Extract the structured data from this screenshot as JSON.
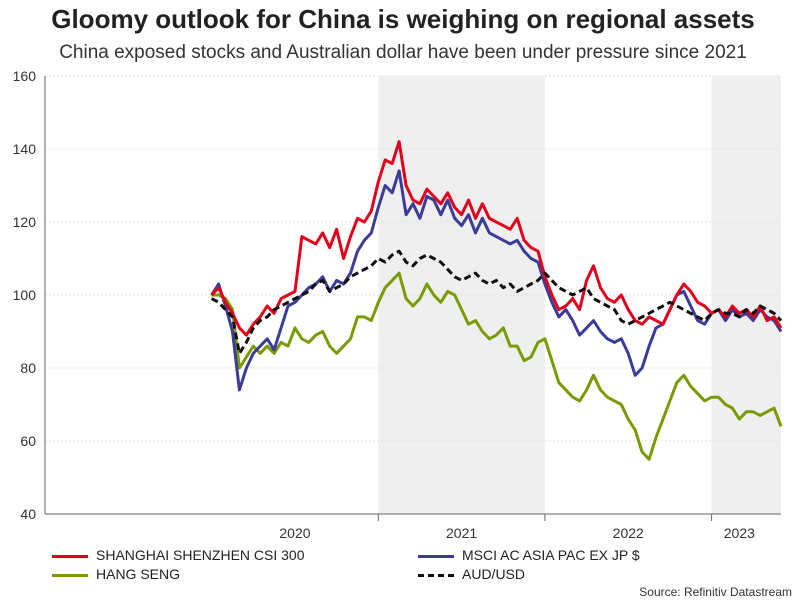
{
  "chart_data": {
    "type": "line",
    "title": "Gloomy outlook for China is weighing on regional assets",
    "subtitle": "China exposed stocks and Australian dollar have been under pressure since 2021",
    "source": "Source: Refinitiv Datastream",
    "ylim": [
      40,
      160
    ],
    "yticks": [
      "160",
      "140",
      "120",
      "100",
      "80",
      "60",
      "40"
    ],
    "ytick_values": [
      160,
      140,
      120,
      100,
      80,
      60,
      40
    ],
    "xlim": [
      0,
      53
    ],
    "x_unit": "months since Jan 2019 (start of chart ~ Jun 2019)",
    "x_labels": [
      {
        "label": "2020",
        "x": 18
      },
      {
        "label": "2021",
        "x": 30
      },
      {
        "label": "2022",
        "x": 42
      },
      {
        "label": "2023",
        "x": 50
      }
    ],
    "year_boundaries": [
      24,
      36,
      48
    ],
    "shaded_ranges": [
      [
        24,
        36
      ],
      [
        48,
        53
      ]
    ],
    "series": [
      {
        "name": "SHANGHAI SHENZHEN CSI 300",
        "color": "#e3001b",
        "dash": false,
        "x": [
          12,
          12.5,
          13,
          13.5,
          14,
          14.5,
          15,
          15.5,
          16,
          16.5,
          17,
          17.5,
          18,
          18.5,
          19,
          19.5,
          20,
          20.5,
          21,
          21.5,
          22,
          22.5,
          23,
          23.5,
          24,
          24.5,
          25,
          25.5,
          26,
          26.5,
          27,
          27.5,
          28,
          28.5,
          29,
          29.5,
          30,
          30.5,
          31,
          31.5,
          32,
          32.5,
          33,
          33.5,
          34,
          34.5,
          35,
          35.5,
          36,
          36.5,
          37,
          37.5,
          38,
          38.5,
          39,
          39.5,
          40,
          40.5,
          41,
          41.5,
          42,
          42.5,
          43,
          43.5,
          44,
          44.5,
          45,
          45.5,
          46,
          46.5,
          47,
          47.5,
          48,
          48.5,
          49,
          49.5,
          50,
          50.5,
          51,
          51.5,
          52,
          52.5,
          53
        ],
        "values": [
          100,
          102,
          98,
          95,
          91,
          89,
          92,
          94,
          97,
          95,
          99,
          100,
          101,
          116,
          115,
          114,
          117,
          113,
          118,
          110,
          116,
          121,
          120,
          123,
          131,
          137,
          136,
          142,
          130,
          126,
          125,
          129,
          127,
          125,
          128,
          124,
          122,
          126,
          121,
          125,
          121,
          120,
          119,
          118,
          121,
          115,
          113,
          112,
          105,
          100,
          96,
          97,
          99,
          96,
          104,
          108,
          102,
          99,
          98,
          100,
          96,
          93,
          92,
          94,
          93,
          92,
          96,
          100,
          103,
          101,
          98,
          97,
          95,
          96,
          94,
          97,
          95,
          96,
          94,
          97,
          93,
          94,
          91
        ]
      },
      {
        "name": "MSCI AC ASIA PAC EX JP $",
        "color": "#3b3b98",
        "dash": false,
        "x": [
          12,
          12.5,
          13,
          13.5,
          14,
          14.5,
          15,
          15.5,
          16,
          16.5,
          17,
          17.5,
          18,
          18.5,
          19,
          19.5,
          20,
          20.5,
          21,
          21.5,
          22,
          22.5,
          23,
          23.5,
          24,
          24.5,
          25,
          25.5,
          26,
          26.5,
          27,
          27.5,
          28,
          28.5,
          29,
          29.5,
          30,
          30.5,
          31,
          31.5,
          32,
          32.5,
          33,
          33.5,
          34,
          34.5,
          35,
          35.5,
          36,
          36.5,
          37,
          37.5,
          38,
          38.5,
          39,
          39.5,
          40,
          40.5,
          41,
          41.5,
          42,
          42.5,
          43,
          43.5,
          44,
          44.5,
          45,
          45.5,
          46,
          46.5,
          47,
          47.5,
          48,
          48.5,
          49,
          49.5,
          50,
          50.5,
          51,
          51.5,
          52,
          52.5,
          53
        ],
        "values": [
          100,
          103,
          97,
          90,
          74,
          80,
          84,
          86,
          88,
          85,
          91,
          97,
          98,
          100,
          102,
          103,
          105,
          101,
          104,
          103,
          106,
          112,
          115,
          117,
          124,
          130,
          128,
          134,
          122,
          125,
          121,
          127,
          126,
          122,
          126,
          121,
          119,
          122,
          117,
          121,
          117,
          116,
          115,
          114,
          115,
          112,
          110,
          109,
          103,
          98,
          94,
          96,
          93,
          89,
          91,
          93,
          90,
          88,
          87,
          88,
          84,
          78,
          80,
          86,
          91,
          92,
          96,
          100,
          101,
          97,
          93,
          92,
          95,
          96,
          93,
          96,
          94,
          95,
          93,
          96,
          94,
          93,
          90
        ]
      },
      {
        "name": "HANG SENG",
        "color": "#7a9a01",
        "dash": false,
        "x": [
          12,
          12.5,
          13,
          13.5,
          14,
          14.5,
          15,
          15.5,
          16,
          16.5,
          17,
          17.5,
          18,
          18.5,
          19,
          19.5,
          20,
          20.5,
          21,
          21.5,
          22,
          22.5,
          23,
          23.5,
          24,
          24.5,
          25,
          25.5,
          26,
          26.5,
          27,
          27.5,
          28,
          28.5,
          29,
          29.5,
          30,
          30.5,
          31,
          31.5,
          32,
          32.5,
          33,
          33.5,
          34,
          34.5,
          35,
          35.5,
          36,
          36.5,
          37,
          37.5,
          38,
          38.5,
          39,
          39.5,
          40,
          40.5,
          41,
          41.5,
          42,
          42.5,
          43,
          43.5,
          44,
          44.5,
          45,
          45.5,
          46,
          46.5,
          47,
          47.5,
          48,
          48.5,
          49,
          49.5,
          50,
          50.5,
          51,
          51.5,
          52,
          52.5,
          53
        ],
        "values": [
          100,
          100,
          99,
          96,
          80,
          83,
          86,
          84,
          86,
          84,
          87,
          86,
          91,
          88,
          87,
          89,
          90,
          86,
          84,
          86,
          88,
          94,
          94,
          93,
          98,
          102,
          104,
          106,
          99,
          97,
          99,
          103,
          100,
          98,
          101,
          100,
          96,
          92,
          93,
          90,
          88,
          89,
          91,
          86,
          86,
          82,
          83,
          87,
          88,
          82,
          76,
          74,
          72,
          71,
          74,
          78,
          74,
          72,
          71,
          70,
          66,
          63,
          57,
          55,
          61,
          66,
          71,
          76,
          78,
          75,
          73,
          71,
          72,
          72,
          70,
          69,
          66,
          68,
          68,
          67,
          68,
          69,
          64
        ]
      },
      {
        "name": "AUD/USD",
        "color": "#111111",
        "dash": true,
        "x": [
          12,
          12.5,
          13,
          13.5,
          14,
          14.5,
          15,
          15.5,
          16,
          16.5,
          17,
          17.5,
          18,
          18.5,
          19,
          19.5,
          20,
          20.5,
          21,
          21.5,
          22,
          22.5,
          23,
          23.5,
          24,
          24.5,
          25,
          25.5,
          26,
          26.5,
          27,
          27.5,
          28,
          28.5,
          29,
          29.5,
          30,
          30.5,
          31,
          31.5,
          32,
          32.5,
          33,
          33.5,
          34,
          34.5,
          35,
          35.5,
          36,
          36.5,
          37,
          37.5,
          38,
          38.5,
          39,
          39.5,
          40,
          40.5,
          41,
          41.5,
          42,
          42.5,
          43,
          43.5,
          44,
          44.5,
          45,
          45.5,
          46,
          46.5,
          47,
          47.5,
          48,
          48.5,
          49,
          49.5,
          50,
          50.5,
          51,
          51.5,
          52,
          52.5,
          53
        ],
        "values": [
          99,
          98,
          96,
          94,
          84,
          87,
          91,
          93,
          94,
          96,
          97,
          98,
          99,
          100,
          101,
          103,
          104,
          101,
          102,
          103,
          105,
          106,
          107,
          108,
          110,
          109,
          111,
          112,
          109,
          108,
          110,
          111,
          110,
          109,
          107,
          105,
          104,
          105,
          106,
          104,
          103,
          104,
          102,
          103,
          101,
          102,
          103,
          104,
          106,
          104,
          102,
          101,
          100,
          101,
          102,
          99,
          98,
          97,
          96,
          93,
          92,
          93,
          94,
          95,
          96,
          97,
          98,
          97,
          96,
          95,
          94,
          93,
          95,
          96,
          95,
          95,
          94,
          96,
          95,
          97,
          96,
          95,
          93
        ]
      }
    ],
    "legend": {
      "placement": "bottom",
      "entries": [
        "SHANGHAI SHENZHEN CSI 300",
        "MSCI AC ASIA PAC EX JP $",
        "HANG SENG",
        "AUD/USD"
      ]
    }
  }
}
